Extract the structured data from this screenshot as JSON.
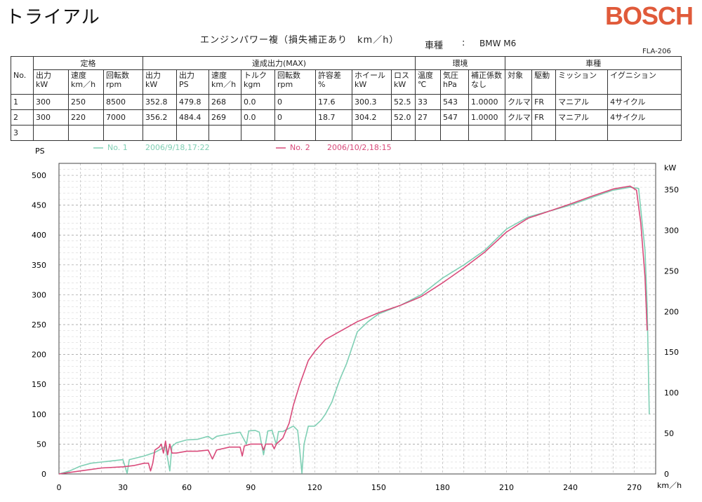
{
  "header": {
    "title": "トライアル",
    "brand": "BOSCH",
    "subtitle": "エンジンパワー複（損失補正あり　km／h）",
    "vehicle_label": "車種",
    "vehicle_colon": ":",
    "vehicle_value": "BMW M6",
    "form_code": "FLA-206"
  },
  "table": {
    "group_headers": [
      "定格",
      "達成出力(MAX)",
      "環境",
      "車種"
    ],
    "no_header": "No.",
    "columns": [
      [
        "出力",
        "kW"
      ],
      [
        "速度",
        "km／h"
      ],
      [
        "回転数",
        "rpm"
      ],
      [
        "出力",
        "kW"
      ],
      [
        "出力",
        "PS"
      ],
      [
        "速度",
        "km／h"
      ],
      [
        "トルク",
        "kgm"
      ],
      [
        "回転数",
        "rpm"
      ],
      [
        "許容差",
        "%"
      ],
      [
        "ホイール",
        "kW"
      ],
      [
        "ロス",
        "kW"
      ],
      [
        "温度",
        "℃"
      ],
      [
        "気圧",
        "hPa"
      ],
      [
        "補正係数",
        "なし"
      ],
      [
        "対象",
        ""
      ],
      [
        "駆動",
        ""
      ],
      [
        "ミッション",
        ""
      ],
      [
        "イグニション",
        ""
      ]
    ],
    "rows": [
      [
        "1",
        "300",
        "250",
        "8500",
        "352.8",
        "479.8",
        "268",
        "0.0",
        "0",
        "17.6",
        "300.3",
        "52.5",
        "33",
        "543",
        "1.0000",
        "クルマ",
        "FR",
        "マニアル",
        "4サイクル"
      ],
      [
        "2",
        "300",
        "220",
        "7000",
        "356.2",
        "484.4",
        "269",
        "0.0",
        "0",
        "18.7",
        "304.2",
        "52.0",
        "27",
        "547",
        "1.0000",
        "クルマ",
        "FR",
        "マニアル",
        "4サイクル"
      ],
      [
        "3",
        "",
        "",
        "",
        "",
        "",
        "",
        "",
        "",
        "",
        "",
        "",
        "",
        "",
        "",
        "",
        "",
        "",
        ""
      ]
    ]
  },
  "chart_data": {
    "type": "line",
    "ylabel": "PS",
    "y2label": "kW",
    "xlabel": "km／h",
    "xlim": [
      0,
      280
    ],
    "ylim": [
      0,
      520
    ],
    "y2lim": [
      0,
      382.4
    ],
    "x_ticks": [
      0,
      30,
      60,
      90,
      120,
      150,
      180,
      210,
      240,
      270
    ],
    "y_ticks": [
      0,
      50,
      100,
      150,
      200,
      250,
      300,
      350,
      400,
      450,
      500
    ],
    "y2_ticks": [
      0,
      50,
      100,
      150,
      200,
      250,
      300,
      350
    ],
    "grid": true,
    "legend_position": "top",
    "series": [
      {
        "name": "No. 1",
        "legend_date": "2006/9/18,17:22",
        "color": "#7fcfb4",
        "points": [
          [
            0,
            0
          ],
          [
            5,
            5
          ],
          [
            10,
            13
          ],
          [
            15,
            18
          ],
          [
            20,
            20
          ],
          [
            25,
            22
          ],
          [
            30,
            24
          ],
          [
            32,
            1
          ],
          [
            33,
            24
          ],
          [
            40,
            30
          ],
          [
            45,
            36
          ],
          [
            50,
            46
          ],
          [
            52,
            5
          ],
          [
            53,
            46
          ],
          [
            55,
            52
          ],
          [
            60,
            57
          ],
          [
            65,
            58
          ],
          [
            70,
            63
          ],
          [
            72,
            58
          ],
          [
            74,
            63
          ],
          [
            80,
            67
          ],
          [
            85,
            70
          ],
          [
            88,
            50
          ],
          [
            89,
            72
          ],
          [
            92,
            73
          ],
          [
            94,
            70
          ],
          [
            96,
            32
          ],
          [
            98,
            72
          ],
          [
            100,
            73
          ],
          [
            102,
            49
          ],
          [
            103,
            71
          ],
          [
            105,
            71
          ],
          [
            110,
            80
          ],
          [
            112,
            73
          ],
          [
            113,
            40
          ],
          [
            114,
            1
          ],
          [
            115,
            50
          ],
          [
            117,
            80
          ],
          [
            120,
            80
          ],
          [
            123,
            90
          ],
          [
            125,
            100
          ],
          [
            128,
            120
          ],
          [
            130,
            140
          ],
          [
            132,
            160
          ],
          [
            135,
            185
          ],
          [
            140,
            238
          ],
          [
            145,
            255
          ],
          [
            150,
            268
          ],
          [
            160,
            282
          ],
          [
            170,
            300
          ],
          [
            180,
            328
          ],
          [
            190,
            350
          ],
          [
            200,
            375
          ],
          [
            210,
            410
          ],
          [
            220,
            430
          ],
          [
            230,
            440
          ],
          [
            240,
            450
          ],
          [
            250,
            463
          ],
          [
            260,
            475
          ],
          [
            268,
            480
          ],
          [
            272,
            478
          ],
          [
            275,
            375
          ],
          [
            276,
            280
          ],
          [
            277,
            100
          ]
        ]
      },
      {
        "name": "No. 2",
        "legend_date": "2006/10/2,18:15",
        "color": "#d94a7a",
        "points": [
          [
            0,
            0
          ],
          [
            10,
            5
          ],
          [
            20,
            10
          ],
          [
            30,
            12
          ],
          [
            35,
            14
          ],
          [
            40,
            18
          ],
          [
            42,
            18
          ],
          [
            43,
            5
          ],
          [
            44,
            18
          ],
          [
            45,
            40
          ],
          [
            47,
            45
          ],
          [
            48,
            50
          ],
          [
            49,
            35
          ],
          [
            50,
            55
          ],
          [
            51,
            32
          ],
          [
            52,
            50
          ],
          [
            53,
            35
          ],
          [
            55,
            35
          ],
          [
            60,
            38
          ],
          [
            65,
            38
          ],
          [
            70,
            40
          ],
          [
            72,
            25
          ],
          [
            74,
            40
          ],
          [
            80,
            45
          ],
          [
            85,
            45
          ],
          [
            86,
            30
          ],
          [
            87,
            47
          ],
          [
            90,
            50
          ],
          [
            95,
            50
          ],
          [
            96,
            40
          ],
          [
            97,
            50
          ],
          [
            100,
            50
          ],
          [
            101,
            42
          ],
          [
            102,
            50
          ],
          [
            105,
            60
          ],
          [
            108,
            85
          ],
          [
            110,
            115
          ],
          [
            113,
            150
          ],
          [
            117,
            190
          ],
          [
            120,
            205
          ],
          [
            125,
            225
          ],
          [
            130,
            235
          ],
          [
            140,
            255
          ],
          [
            150,
            270
          ],
          [
            160,
            282
          ],
          [
            170,
            297
          ],
          [
            180,
            320
          ],
          [
            190,
            345
          ],
          [
            200,
            372
          ],
          [
            210,
            405
          ],
          [
            220,
            428
          ],
          [
            230,
            440
          ],
          [
            240,
            452
          ],
          [
            250,
            465
          ],
          [
            260,
            477
          ],
          [
            268,
            482
          ],
          [
            271,
            475
          ],
          [
            273,
            420
          ],
          [
            275,
            330
          ],
          [
            276,
            240
          ]
        ]
      }
    ]
  }
}
